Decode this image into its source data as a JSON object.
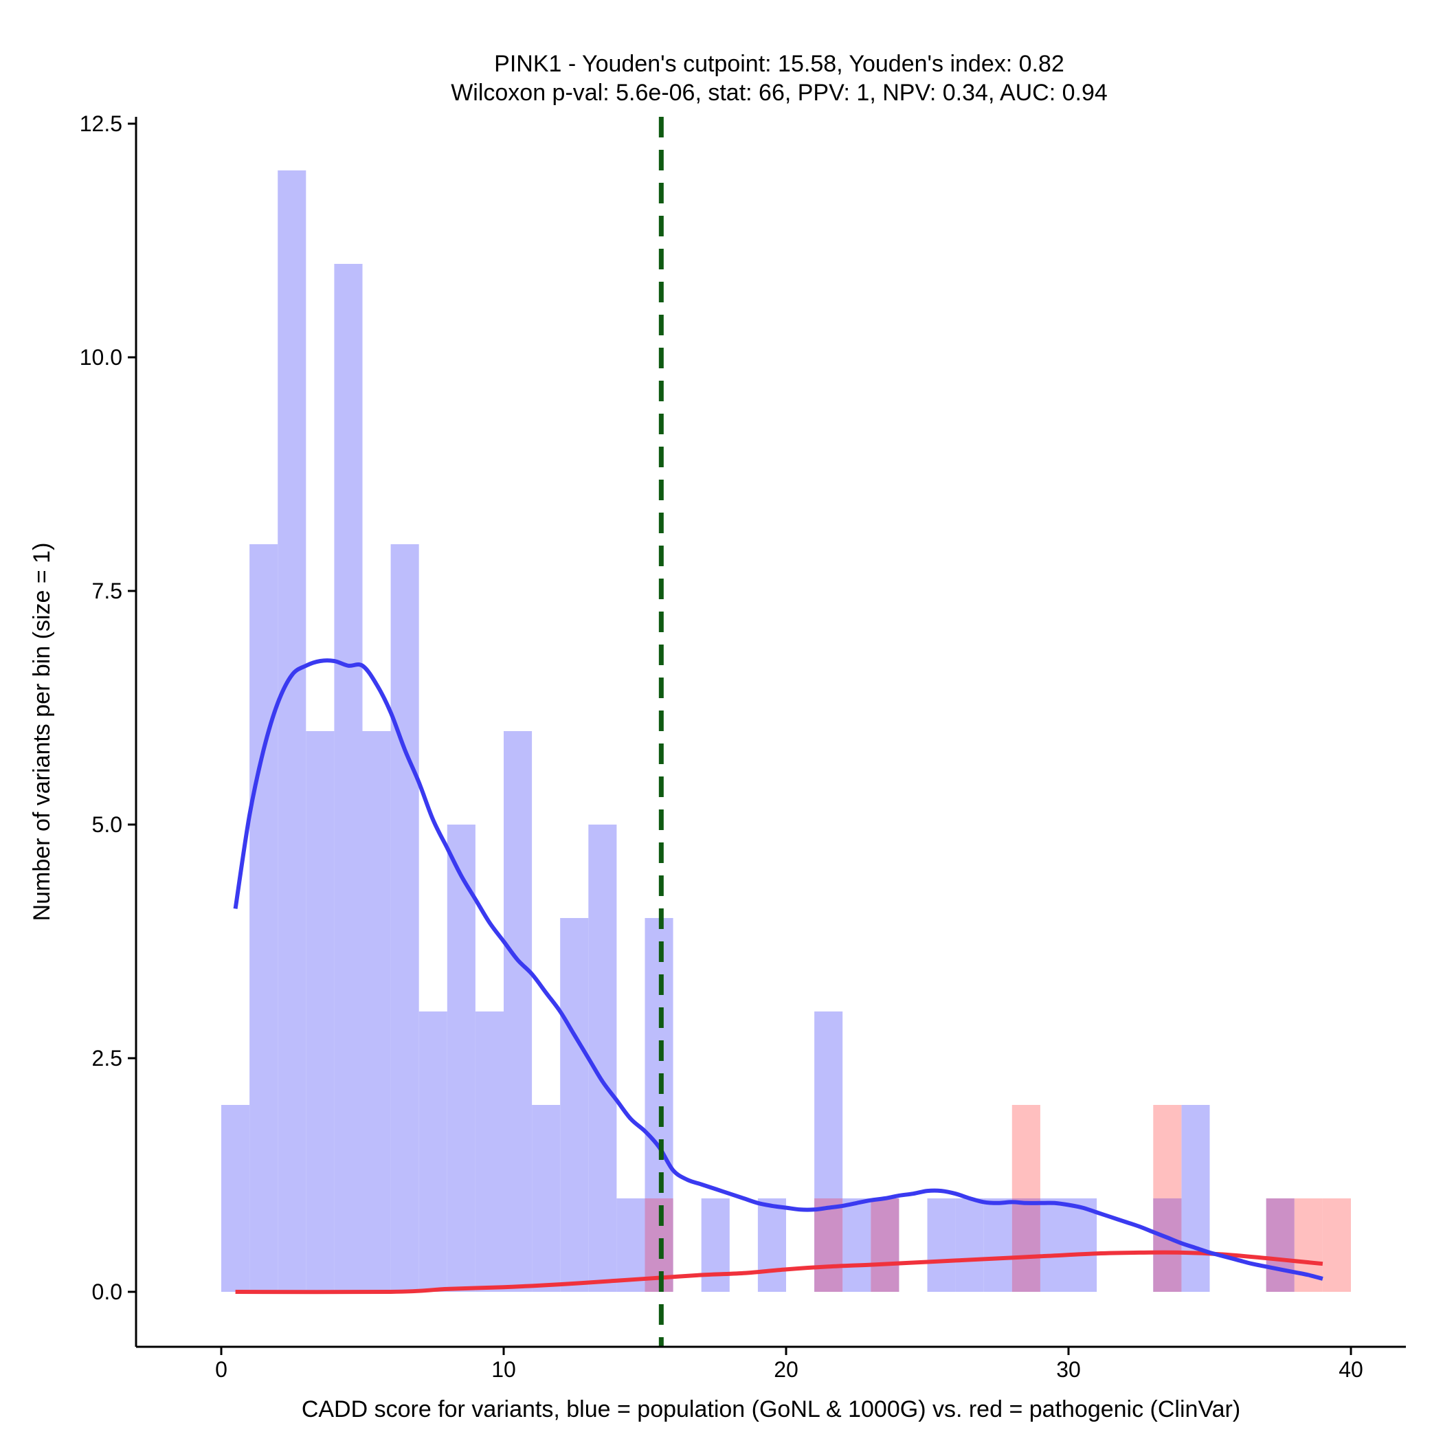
{
  "chart_data": {
    "type": "histogram+density",
    "title_lines": [
      "PINK1 - Youden's cutpoint: 15.58, Youden's index: 0.82",
      "Wilcoxon p-val: 5.6e-06, stat: 66, PPV: 1, NPV: 0.34, AUC: 0.94"
    ],
    "xlabel": "CADD score for variants, blue = population (GoNL & 1000G) vs. red = pathogenic (ClinVar)",
    "ylabel": "Number of variants per bin (size = 1)",
    "xlim": [
      -3,
      42
    ],
    "ylim": [
      -0.6,
      12.6
    ],
    "x_ticks": [
      0,
      10,
      20,
      30,
      40
    ],
    "x_tick_labels": [
      "0",
      "10",
      "20",
      "30",
      "40"
    ],
    "y_ticks": [
      0,
      2.5,
      5,
      7.5,
      10,
      12.5
    ],
    "y_tick_labels": [
      "0.0",
      "2.5",
      "5.0",
      "7.5",
      "10.0",
      "12.5"
    ],
    "bin_size": 1,
    "cutpoint": 15.58,
    "colors": {
      "population_bar": "#bdbdfc",
      "pathogenic_bar": "#ffbfbf",
      "overlap_bar": "#cc90c6",
      "population_line": "#3a3af0",
      "pathogenic_line": "#f0323c",
      "cutpoint_line": "#0f5a12"
    },
    "series": [
      {
        "name": "population (GoNL & 1000G)",
        "bins": [
          [
            0,
            2
          ],
          [
            1,
            8
          ],
          [
            2,
            12
          ],
          [
            3,
            6
          ],
          [
            4,
            11
          ],
          [
            5,
            6
          ],
          [
            6,
            8
          ],
          [
            7,
            3
          ],
          [
            8,
            5
          ],
          [
            9,
            3
          ],
          [
            10,
            6
          ],
          [
            11,
            2
          ],
          [
            12,
            4
          ],
          [
            13,
            5
          ],
          [
            14,
            1
          ],
          [
            15,
            4
          ],
          [
            17,
            1
          ],
          [
            19,
            1
          ],
          [
            21,
            3
          ],
          [
            22,
            1
          ],
          [
            23,
            1
          ],
          [
            25,
            1
          ],
          [
            26,
            1
          ],
          [
            27,
            1
          ],
          [
            28,
            1
          ],
          [
            29,
            1
          ],
          [
            30,
            1
          ],
          [
            33,
            1
          ],
          [
            34,
            2
          ],
          [
            37,
            1
          ]
        ],
        "density": [
          [
            0.5,
            4.1
          ],
          [
            1,
            5.1
          ],
          [
            1.5,
            5.8
          ],
          [
            2,
            6.3
          ],
          [
            2.5,
            6.6
          ],
          [
            3,
            6.7
          ],
          [
            3.5,
            6.75
          ],
          [
            4,
            6.75
          ],
          [
            4.5,
            6.7
          ],
          [
            5,
            6.7
          ],
          [
            5.5,
            6.5
          ],
          [
            6,
            6.2
          ],
          [
            6.5,
            5.8
          ],
          [
            7,
            5.45
          ],
          [
            7.5,
            5.05
          ],
          [
            8,
            4.75
          ],
          [
            8.5,
            4.45
          ],
          [
            9,
            4.2
          ],
          [
            9.5,
            3.95
          ],
          [
            10,
            3.75
          ],
          [
            10.5,
            3.55
          ],
          [
            11,
            3.4
          ],
          [
            11.5,
            3.2
          ],
          [
            12,
            3.0
          ],
          [
            12.5,
            2.75
          ],
          [
            13,
            2.5
          ],
          [
            13.5,
            2.25
          ],
          [
            14,
            2.05
          ],
          [
            14.5,
            1.85
          ],
          [
            15,
            1.72
          ],
          [
            15.5,
            1.55
          ],
          [
            16,
            1.3
          ],
          [
            16.5,
            1.2
          ],
          [
            17,
            1.15
          ],
          [
            17.5,
            1.1
          ],
          [
            18,
            1.05
          ],
          [
            18.5,
            1.0
          ],
          [
            19,
            0.95
          ],
          [
            19.5,
            0.92
          ],
          [
            20,
            0.9
          ],
          [
            20.5,
            0.88
          ],
          [
            21,
            0.88
          ],
          [
            21.5,
            0.9
          ],
          [
            22,
            0.92
          ],
          [
            22.5,
            0.95
          ],
          [
            23,
            0.98
          ],
          [
            23.5,
            1.0
          ],
          [
            24,
            1.03
          ],
          [
            24.5,
            1.05
          ],
          [
            25,
            1.08
          ],
          [
            25.5,
            1.08
          ],
          [
            26,
            1.05
          ],
          [
            26.5,
            1.0
          ],
          [
            27,
            0.96
          ],
          [
            27.5,
            0.95
          ],
          [
            28,
            0.96
          ],
          [
            28.5,
            0.95
          ],
          [
            29,
            0.95
          ],
          [
            29.5,
            0.95
          ],
          [
            30,
            0.93
          ],
          [
            30.5,
            0.9
          ],
          [
            31,
            0.85
          ],
          [
            31.5,
            0.8
          ],
          [
            32,
            0.75
          ],
          [
            32.5,
            0.7
          ],
          [
            33,
            0.64
          ],
          [
            33.5,
            0.58
          ],
          [
            34,
            0.52
          ],
          [
            34.5,
            0.47
          ],
          [
            35,
            0.42
          ],
          [
            35.5,
            0.38
          ],
          [
            36,
            0.34
          ],
          [
            36.5,
            0.3
          ],
          [
            37,
            0.27
          ],
          [
            37.5,
            0.24
          ],
          [
            38,
            0.21
          ],
          [
            38.5,
            0.18
          ],
          [
            39,
            0.14
          ]
        ]
      },
      {
        "name": "pathogenic (ClinVar)",
        "bins": [
          [
            15,
            1
          ],
          [
            21,
            1
          ],
          [
            23,
            1
          ],
          [
            28,
            2
          ],
          [
            33,
            2
          ],
          [
            37,
            1
          ],
          [
            38,
            1
          ],
          [
            39,
            1
          ]
        ],
        "density": [
          [
            0.5,
            0.0
          ],
          [
            6,
            0.0
          ],
          [
            8,
            0.03
          ],
          [
            10,
            0.05
          ],
          [
            12,
            0.08
          ],
          [
            14,
            0.12
          ],
          [
            15.5,
            0.15
          ],
          [
            17,
            0.18
          ],
          [
            18.5,
            0.2
          ],
          [
            20,
            0.24
          ],
          [
            21.5,
            0.27
          ],
          [
            23,
            0.29
          ],
          [
            25,
            0.32
          ],
          [
            27,
            0.35
          ],
          [
            29,
            0.38
          ],
          [
            31,
            0.41
          ],
          [
            32.5,
            0.42
          ],
          [
            34,
            0.42
          ],
          [
            35.5,
            0.4
          ],
          [
            37,
            0.36
          ],
          [
            38,
            0.33
          ],
          [
            39,
            0.3
          ]
        ]
      }
    ]
  }
}
